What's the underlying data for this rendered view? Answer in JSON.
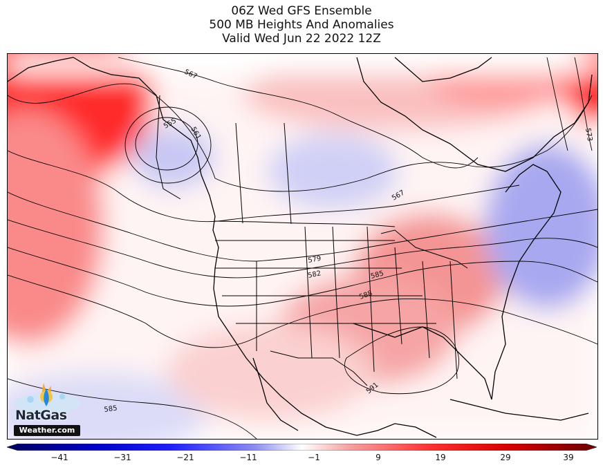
{
  "title": {
    "line1": "06Z Wed GFS Ensemble",
    "line2": "500 MB Heights And Anomalies",
    "line3": "Valid Wed Jun 22 2022 12Z"
  },
  "map": {
    "region": "North America",
    "field": "500 MB height anomalies (shaded) and heights (contours)",
    "contour_labels": [
      "567",
      "555",
      "561",
      "567",
      "573",
      "579",
      "582",
      "585",
      "588",
      "591",
      "585"
    ],
    "anomaly_features": [
      {
        "name": "Alaska / Bering ridge",
        "sign": "positive",
        "color": "#ff2020"
      },
      {
        "name": "Pacific Northwest trough",
        "sign": "negative",
        "color": "#c8c8f4"
      },
      {
        "name": "Northern Plains trough",
        "sign": "negative",
        "color": "#d4d4f8"
      },
      {
        "name": "Central / Eastern US ridge",
        "sign": "positive",
        "color": "#f49a9a"
      },
      {
        "name": "Atlantic Canada trough",
        "sign": "negative",
        "color": "#a8a8f0"
      },
      {
        "name": "Canadian Arctic ridge",
        "sign": "positive",
        "color": "#f8b8b8"
      }
    ]
  },
  "logo": {
    "brand": "NatGas",
    "site": "Weather.com"
  },
  "colorbar": {
    "ticks": [
      "−41",
      "−31",
      "−21",
      "−11",
      "−1",
      "9",
      "19",
      "29",
      "39"
    ],
    "min": -46,
    "max": 44,
    "colors": {
      "deep_negative": "#00007a",
      "negative": "#0000ff",
      "light_negative": "#9a9af2",
      "neutral": "#ffffff",
      "light_positive": "#f6a5a5",
      "positive": "#ff0000",
      "deep_positive": "#7a0000"
    }
  }
}
